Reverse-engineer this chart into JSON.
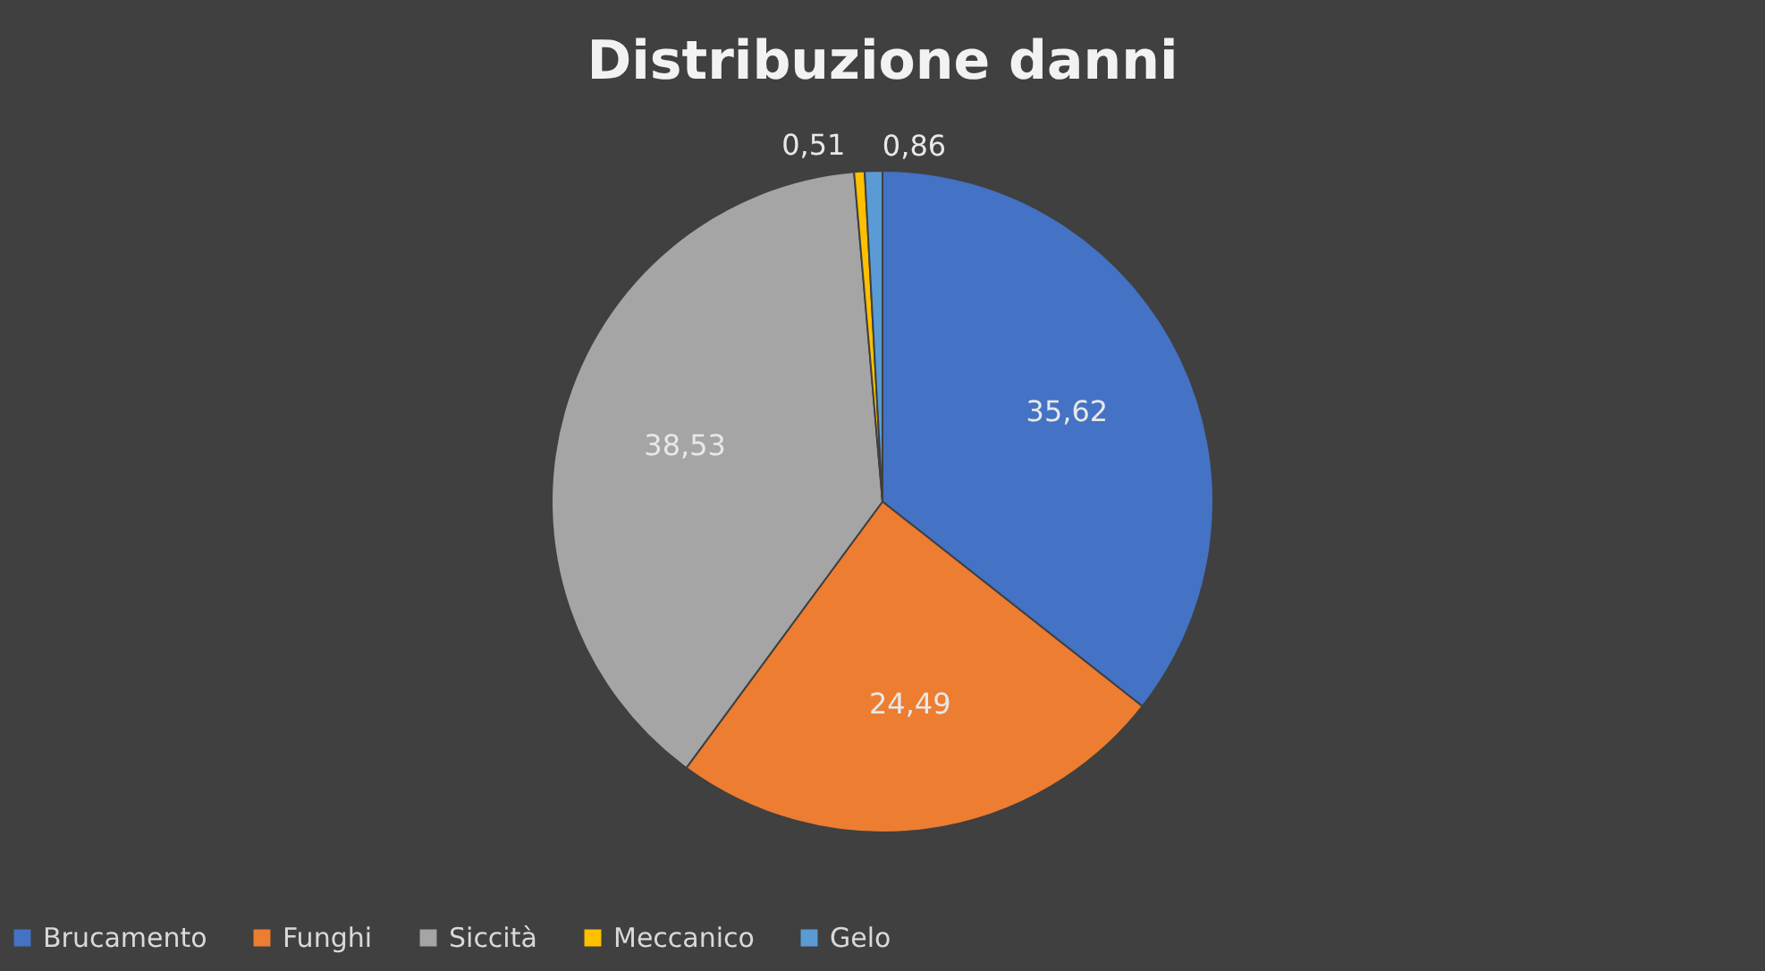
{
  "chart_data": {
    "type": "pie",
    "title": "Distribuzione danni",
    "categories": [
      "Brucamento",
      "Funghi",
      "Siccità",
      "Meccanico",
      "Gelo"
    ],
    "values": [
      35.62,
      24.49,
      38.53,
      0.51,
      0.86
    ],
    "value_labels": [
      "35,62",
      "24,49",
      "38,53",
      "0,51",
      "0,86"
    ],
    "colors": [
      "#4472c4",
      "#ed7d31",
      "#a5a5a5",
      "#ffc000",
      "#5b9bd5"
    ],
    "legend": "bottom"
  }
}
